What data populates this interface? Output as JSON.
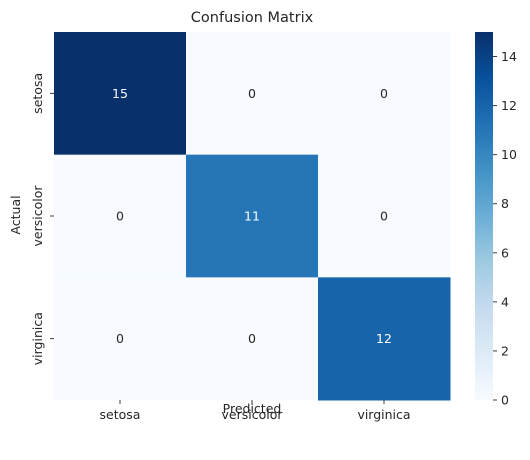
{
  "chart_data": {
    "type": "heatmap",
    "title": "Confusion Matrix",
    "xlabel": "Predicted",
    "ylabel": "Actual",
    "x_categories": [
      "setosa",
      "versicolor",
      "virginica"
    ],
    "y_categories": [
      "setosa",
      "versicolor",
      "virginica"
    ],
    "values": [
      [
        15,
        0,
        0
      ],
      [
        0,
        11,
        0
      ],
      [
        0,
        0,
        12
      ]
    ],
    "colormap": "Blues",
    "color_low": "#f7fbff",
    "color_high": "#08306b",
    "vmin": 0,
    "vmax": 15,
    "colorbar_ticks": [
      "0",
      "2",
      "4",
      "6",
      "8",
      "10",
      "12",
      "14"
    ],
    "annotation_text_light": "#ffffff",
    "annotation_text_dark": "#262626",
    "legend": "colorbar-right"
  }
}
